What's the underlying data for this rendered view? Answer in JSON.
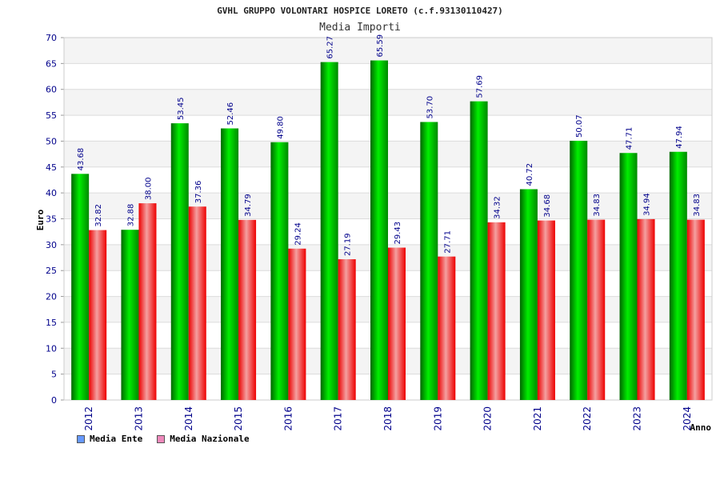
{
  "chart_data": {
    "type": "bar",
    "title": "GVHL GRUPPO VOLONTARI HOSPICE LORETO (c.f.93130110427)",
    "subtitle": "Media Importi",
    "xlabel": "Anno",
    "ylabel": "Euro",
    "ylim": [
      0,
      70
    ],
    "yticks": [
      0,
      5,
      10,
      15,
      20,
      25,
      30,
      35,
      40,
      45,
      50,
      55,
      60,
      65,
      70
    ],
    "grid": true,
    "legend_position": "bottom-left",
    "categories": [
      "2012",
      "2013",
      "2014",
      "2015",
      "2016",
      "2017",
      "2018",
      "2019",
      "2020",
      "2021",
      "2022",
      "2023",
      "2024"
    ],
    "series": [
      {
        "name": "Media Ente",
        "color": "#00cc00",
        "legend_color": "#6699ff",
        "values": [
          43.68,
          32.88,
          53.45,
          52.46,
          49.8,
          65.27,
          65.59,
          53.7,
          57.69,
          40.72,
          50.07,
          47.71,
          47.94
        ],
        "labels": [
          "43.68",
          "32.88",
          "53.45",
          "52.46",
          "49.80",
          "65.27",
          "65.59",
          "53.70",
          "57.69",
          "40.72",
          "50.07",
          "47.71",
          "47.94"
        ]
      },
      {
        "name": "Media Nazionale",
        "color": "#ee1111",
        "legend_color": "#ee88bb",
        "values": [
          32.82,
          38.0,
          37.36,
          34.79,
          29.24,
          27.19,
          29.43,
          27.71,
          34.32,
          34.68,
          34.83,
          34.94,
          34.83
        ],
        "labels": [
          "32.82",
          "38.00",
          "37.36",
          "34.79",
          "29.24",
          "27.19",
          "29.43",
          "27.71",
          "34.32",
          "34.68",
          "34.83",
          "34.94",
          "34.83"
        ]
      }
    ]
  }
}
